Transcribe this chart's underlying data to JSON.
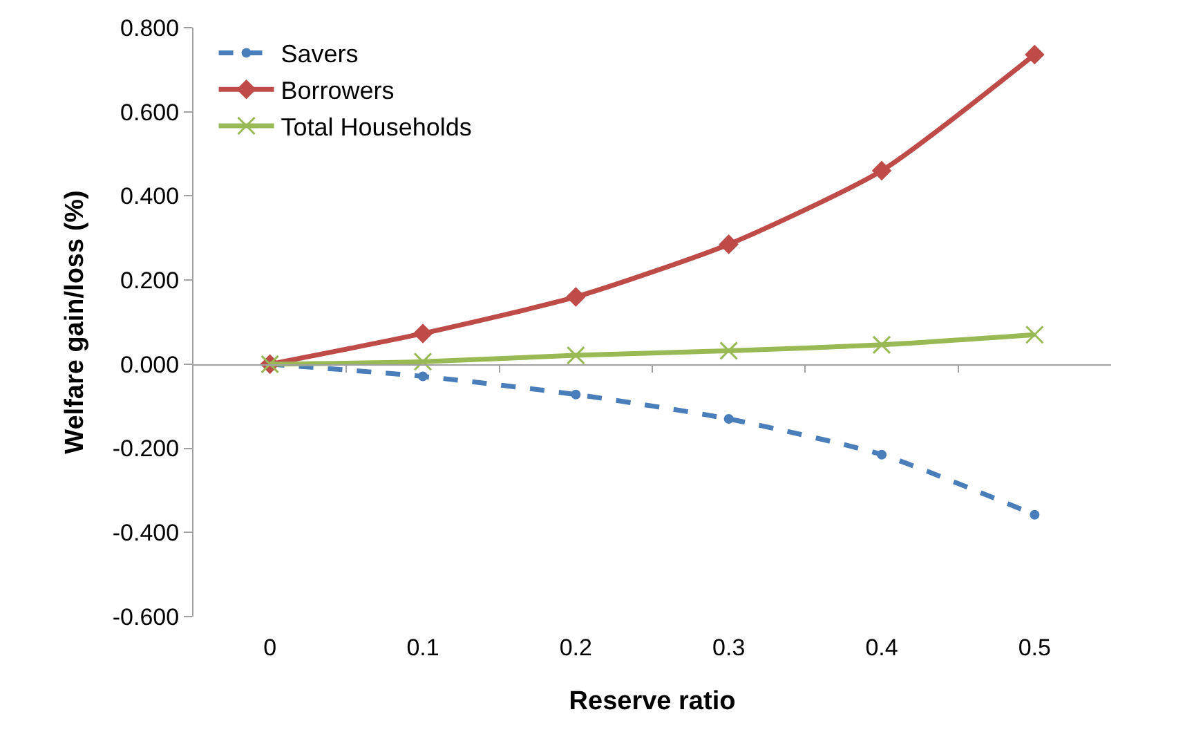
{
  "chart_data": {
    "type": "line",
    "xlabel": "Reserve ratio",
    "ylabel": "Welfare gain/loss (%)",
    "categories": [
      "0",
      "0.1",
      "0.2",
      "0.3",
      "0.4",
      "0.5"
    ],
    "series": [
      {
        "name": "Savers",
        "color": "#4a7ebb",
        "marker": "circle",
        "line_style": "dashed",
        "values": [
          0,
          -0.029,
          -0.072,
          -0.13,
          -0.215,
          -0.358
        ]
      },
      {
        "name": "Borrowers",
        "color": "#be4b48",
        "marker": "diamond",
        "line_style": "solid",
        "values": [
          0,
          0.073,
          0.16,
          0.285,
          0.46,
          0.736
        ]
      },
      {
        "name": "Total Households",
        "color": "#98b954",
        "marker": "cross",
        "line_style": "solid",
        "values": [
          0,
          0.006,
          0.021,
          0.032,
          0.046,
          0.07
        ]
      }
    ],
    "ylim": [
      -0.6,
      0.8
    ],
    "yticks": [
      {
        "value": -0.6,
        "label": "-0.600"
      },
      {
        "value": -0.4,
        "label": "-0.400"
      },
      {
        "value": -0.2,
        "label": "-0.200"
      },
      {
        "value": 0,
        "label": "0.000"
      },
      {
        "value": 0.2,
        "label": "0.200"
      },
      {
        "value": 0.4,
        "label": "0.400"
      },
      {
        "value": 0.6,
        "label": "0.600"
      },
      {
        "value": 0.8,
        "label": "0.800"
      }
    ],
    "legend": "top left"
  }
}
